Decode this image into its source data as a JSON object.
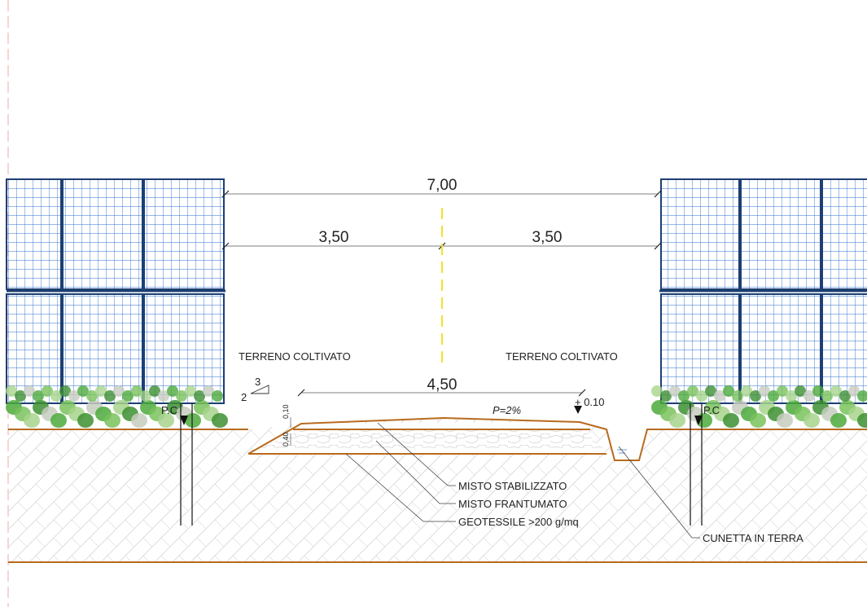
{
  "dimensions": {
    "total": "7,00",
    "half_left": "3,50",
    "half_right": "3,50",
    "road_width": "4,50",
    "slope": "P=2%",
    "elevation": "+ 0.10",
    "layer_top": "0,10",
    "layer_base": "0,40"
  },
  "embankment_ratio": {
    "horizontal": "3",
    "vertical": "2"
  },
  "ground_labels": {
    "left": "TERRENO COLTIVATO",
    "right": "TERRENO COLTIVATO"
  },
  "reference_marks": {
    "left": "P.C",
    "right": "P.C"
  },
  "layers": [
    "MISTO STABILIZZATO",
    "MISTO FRANTUMATO",
    "GEOTESSILE  >200 g/mq"
  ],
  "ditch_label": "CUNETTA IN TERRA"
}
